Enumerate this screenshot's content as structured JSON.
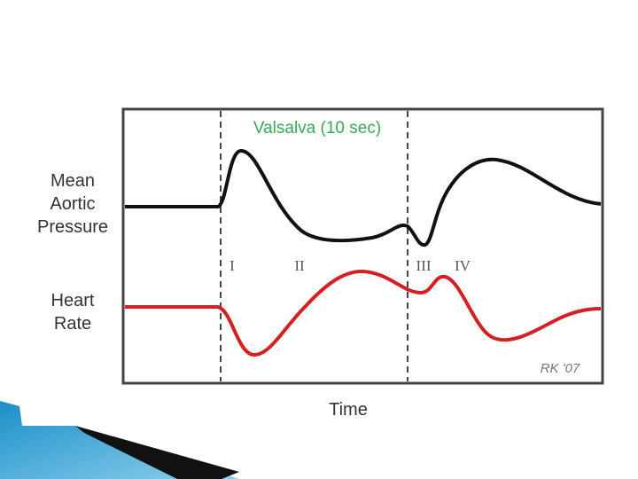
{
  "diagram": {
    "maneuver_label": "Valsalva (10 sec)",
    "pressure_label": [
      "Mean",
      "Aortic",
      "Pressure"
    ],
    "heart_rate_label": [
      "Heart",
      "Rate"
    ],
    "phases": [
      "I",
      "II",
      "III",
      "IV"
    ],
    "x_label": "Time",
    "signature": "RK '07"
  }
}
